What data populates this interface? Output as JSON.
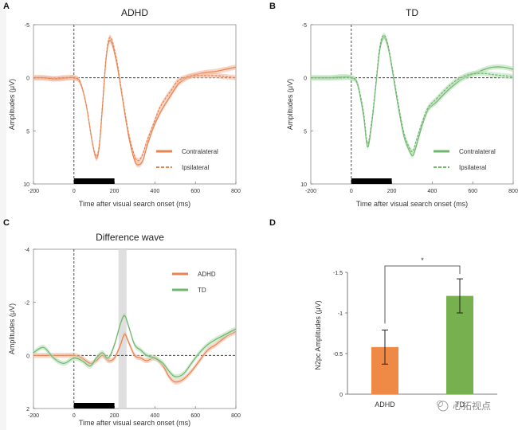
{
  "colors": {
    "adhd": "#e9834f",
    "td": "#6fb56d",
    "adhd_band": "#f1b9a0",
    "td_band": "#b8dfb6",
    "bar_adhd": "#ee8a45",
    "bar_td": "#76b04f"
  },
  "watermark": "心拓视点",
  "chart_data": [
    {
      "type": "line",
      "panel": "A",
      "title": "ADHD",
      "xlabel": "Time after visual search onset (ms)",
      "ylabel": "Amplitudes (μV)",
      "xlim": [
        -200,
        800
      ],
      "ylim": [
        -5,
        10
      ],
      "y_inverted": true,
      "x_ticks": [
        -200,
        0,
        200,
        400,
        600,
        800
      ],
      "y_ticks": [
        -5,
        0,
        5,
        10
      ],
      "stimulus_bar": [
        0,
        200
      ],
      "legend": [
        "Contralateral",
        "Ipsilateral"
      ],
      "series": [
        {
          "name": "Contralateral",
          "x": [
            -200,
            -150,
            -100,
            -60,
            -30,
            0,
            30,
            60,
            90,
            110,
            125,
            140,
            160,
            180,
            210,
            240,
            270,
            300,
            320,
            340,
            360,
            390,
            420,
            450,
            480,
            500,
            520,
            560,
            600,
            650,
            700,
            750,
            800
          ],
          "values": [
            0,
            0,
            0.1,
            0.1,
            0,
            0,
            0.4,
            2.5,
            6.0,
            7.6,
            6.5,
            3.0,
            -2.0,
            -3.5,
            -1.5,
            2.0,
            5.5,
            7.8,
            8.2,
            7.8,
            6.5,
            4.8,
            3.5,
            2.5,
            1.6,
            1.0,
            0.5,
            0,
            -0.3,
            -0.5,
            -0.6,
            -0.8,
            -1.0
          ]
        },
        {
          "name": "Ipsilateral",
          "x": [
            -200,
            -150,
            -100,
            -60,
            -30,
            0,
            30,
            60,
            90,
            110,
            125,
            140,
            160,
            180,
            210,
            240,
            270,
            300,
            320,
            340,
            360,
            390,
            420,
            450,
            480,
            500,
            520,
            560,
            600,
            650,
            700,
            750,
            800
          ],
          "values": [
            0,
            0,
            0.1,
            0,
            0,
            0,
            0.4,
            2.5,
            6.0,
            7.4,
            6.3,
            2.8,
            -2.2,
            -3.8,
            -1.8,
            1.8,
            5.2,
            7.4,
            7.8,
            7.2,
            6.0,
            4.5,
            3.0,
            2.0,
            1.2,
            0.6,
            0.2,
            -0.1,
            -0.2,
            -0.2,
            -0.2,
            -0.1,
            0
          ]
        }
      ]
    },
    {
      "type": "line",
      "panel": "B",
      "title": "TD",
      "xlabel": "Time after visual search onset (ms)",
      "ylabel": "Amplitudes (μV)",
      "xlim": [
        -200,
        800
      ],
      "ylim": [
        -5,
        10
      ],
      "y_inverted": true,
      "x_ticks": [
        -200,
        0,
        200,
        400,
        600,
        800
      ],
      "y_ticks": [
        -5,
        0,
        5,
        10
      ],
      "stimulus_bar": [
        0,
        200
      ],
      "legend": [
        "Contralateral",
        "Ipsilateral"
      ],
      "series": [
        {
          "name": "Contralateral",
          "x": [
            -200,
            -150,
            -100,
            -50,
            0,
            30,
            60,
            80,
            100,
            120,
            140,
            160,
            180,
            200,
            230,
            260,
            290,
            305,
            320,
            350,
            380,
            420,
            460,
            500,
            540,
            580,
            620,
            660,
            700,
            750,
            800
          ],
          "values": [
            0,
            0,
            0,
            -0.1,
            0,
            0.6,
            3.5,
            6.5,
            4.5,
            1.0,
            -2.5,
            -3.8,
            -3.0,
            -1.0,
            2.5,
            5.5,
            7.0,
            7.3,
            6.5,
            4.5,
            3.0,
            2.3,
            1.5,
            0.8,
            0.2,
            -0.2,
            -0.5,
            -0.8,
            -1.0,
            -1.0,
            -0.8
          ]
        },
        {
          "name": "Ipsilateral",
          "x": [
            -200,
            -150,
            -100,
            -50,
            0,
            30,
            60,
            80,
            100,
            120,
            140,
            160,
            180,
            200,
            230,
            260,
            290,
            305,
            320,
            350,
            380,
            420,
            460,
            500,
            540,
            580,
            620,
            660,
            700,
            750,
            800
          ],
          "values": [
            0,
            0,
            0,
            0,
            0,
            0.5,
            3.2,
            6.2,
            4.2,
            0.8,
            -2.8,
            -4.0,
            -3.2,
            -1.2,
            2.2,
            5.2,
            6.7,
            6.9,
            6.0,
            4.2,
            2.8,
            2.0,
            1.2,
            0.5,
            0,
            -0.3,
            -0.4,
            -0.4,
            -0.3,
            -0.2,
            -0.1
          ]
        }
      ]
    },
    {
      "type": "line",
      "panel": "C",
      "title": "Difference wave",
      "xlabel": "Time after visual search onset (ms)",
      "ylabel": "Amplitudes (μV)",
      "xlim": [
        -200,
        800
      ],
      "ylim": [
        -4,
        2
      ],
      "y_inverted": true,
      "x_ticks": [
        -200,
        0,
        200,
        400,
        600,
        800
      ],
      "y_ticks": [
        -4,
        -2,
        0,
        2
      ],
      "stimulus_bar": [
        0,
        200
      ],
      "highlight_window": [
        220,
        260
      ],
      "legend": [
        "ADHD",
        "TD"
      ],
      "series": [
        {
          "name": "ADHD",
          "x": [
            -200,
            -150,
            -100,
            -50,
            0,
            40,
            80,
            110,
            140,
            170,
            200,
            230,
            250,
            270,
            300,
            330,
            360,
            400,
            440,
            470,
            500,
            540,
            580,
            620,
            660,
            700,
            750,
            800
          ],
          "values": [
            0,
            0,
            0,
            0,
            0,
            0.1,
            0.3,
            0.2,
            0,
            0.2,
            0.1,
            -0.4,
            -0.8,
            -0.5,
            0,
            0.1,
            0.2,
            0.1,
            0.4,
            0.8,
            1.0,
            0.9,
            0.6,
            0.2,
            -0.2,
            -0.4,
            -0.7,
            -0.9
          ]
        },
        {
          "name": "TD",
          "x": [
            -200,
            -150,
            -100,
            -50,
            0,
            40,
            80,
            110,
            140,
            170,
            200,
            230,
            250,
            270,
            300,
            330,
            360,
            400,
            440,
            470,
            500,
            540,
            580,
            620,
            660,
            700,
            750,
            800
          ],
          "values": [
            -0.1,
            -0.3,
            0.1,
            0.3,
            0.1,
            0.2,
            0.4,
            0.1,
            -0.1,
            0.1,
            -0.4,
            -1.2,
            -1.5,
            -1.1,
            -0.4,
            -0.2,
            0,
            0.1,
            0.3,
            0.6,
            0.8,
            0.7,
            0.3,
            -0.1,
            -0.4,
            -0.6,
            -0.8,
            -1.0
          ]
        }
      ]
    },
    {
      "type": "bar",
      "panel": "D",
      "categories": [
        "ADHD",
        "TD"
      ],
      "values": [
        -0.58,
        -1.21
      ],
      "errors": [
        0.21,
        0.21
      ],
      "ylabel": "N2pc Amplitudes (μV)",
      "ylim": [
        -1.5,
        0
      ],
      "y_inverted": true,
      "y_ticks": [
        -1.5,
        -1,
        -0.5,
        0
      ],
      "significance": "*"
    }
  ],
  "labels": {
    "panel_a": "A",
    "panel_b": "B",
    "panel_c": "C",
    "panel_d": "D"
  }
}
